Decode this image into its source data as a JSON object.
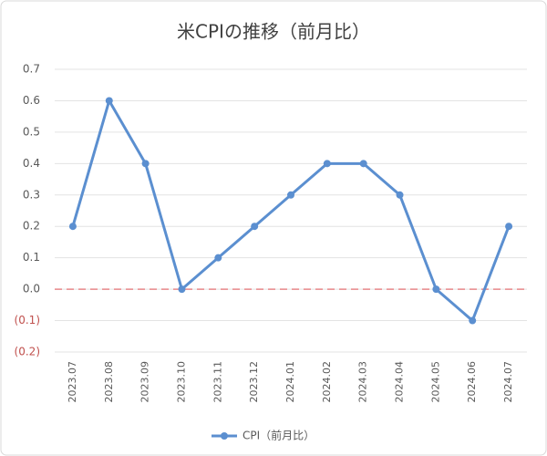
{
  "chart_data": {
    "type": "line",
    "title": "米CPIの推移（前月比）",
    "categories": [
      "2023.07",
      "2023.08",
      "2023.09",
      "2023.10",
      "2023.11",
      "2023.12",
      "2024.01",
      "2024.02",
      "2024.03",
      "2024.04",
      "2024.05",
      "2024.06",
      "2024.07"
    ],
    "series": [
      {
        "name": "CPI（前月比）",
        "color": "#5b8fd0",
        "values": [
          0.2,
          0.6,
          0.4,
          0,
          0.1,
          0.2,
          0.3,
          0.4,
          0.4,
          0.3,
          0,
          -0.1,
          0.2
        ]
      }
    ],
    "ylim": [
      -0.2,
      0.7
    ],
    "yticks": [
      0.7,
      0.6,
      0.5,
      0.4,
      0.3,
      0.2,
      0.1,
      {
        "value": 0,
        "label": "0.0"
      },
      {
        "value": -0.1,
        "label": "(0.1)"
      },
      {
        "value": -0.2,
        "label": "(0.2)"
      }
    ],
    "grid": true,
    "negative_tick_color": "#c0504d",
    "zero_line": true,
    "zero_line_color": "#e8888a",
    "legend": "bottom"
  }
}
